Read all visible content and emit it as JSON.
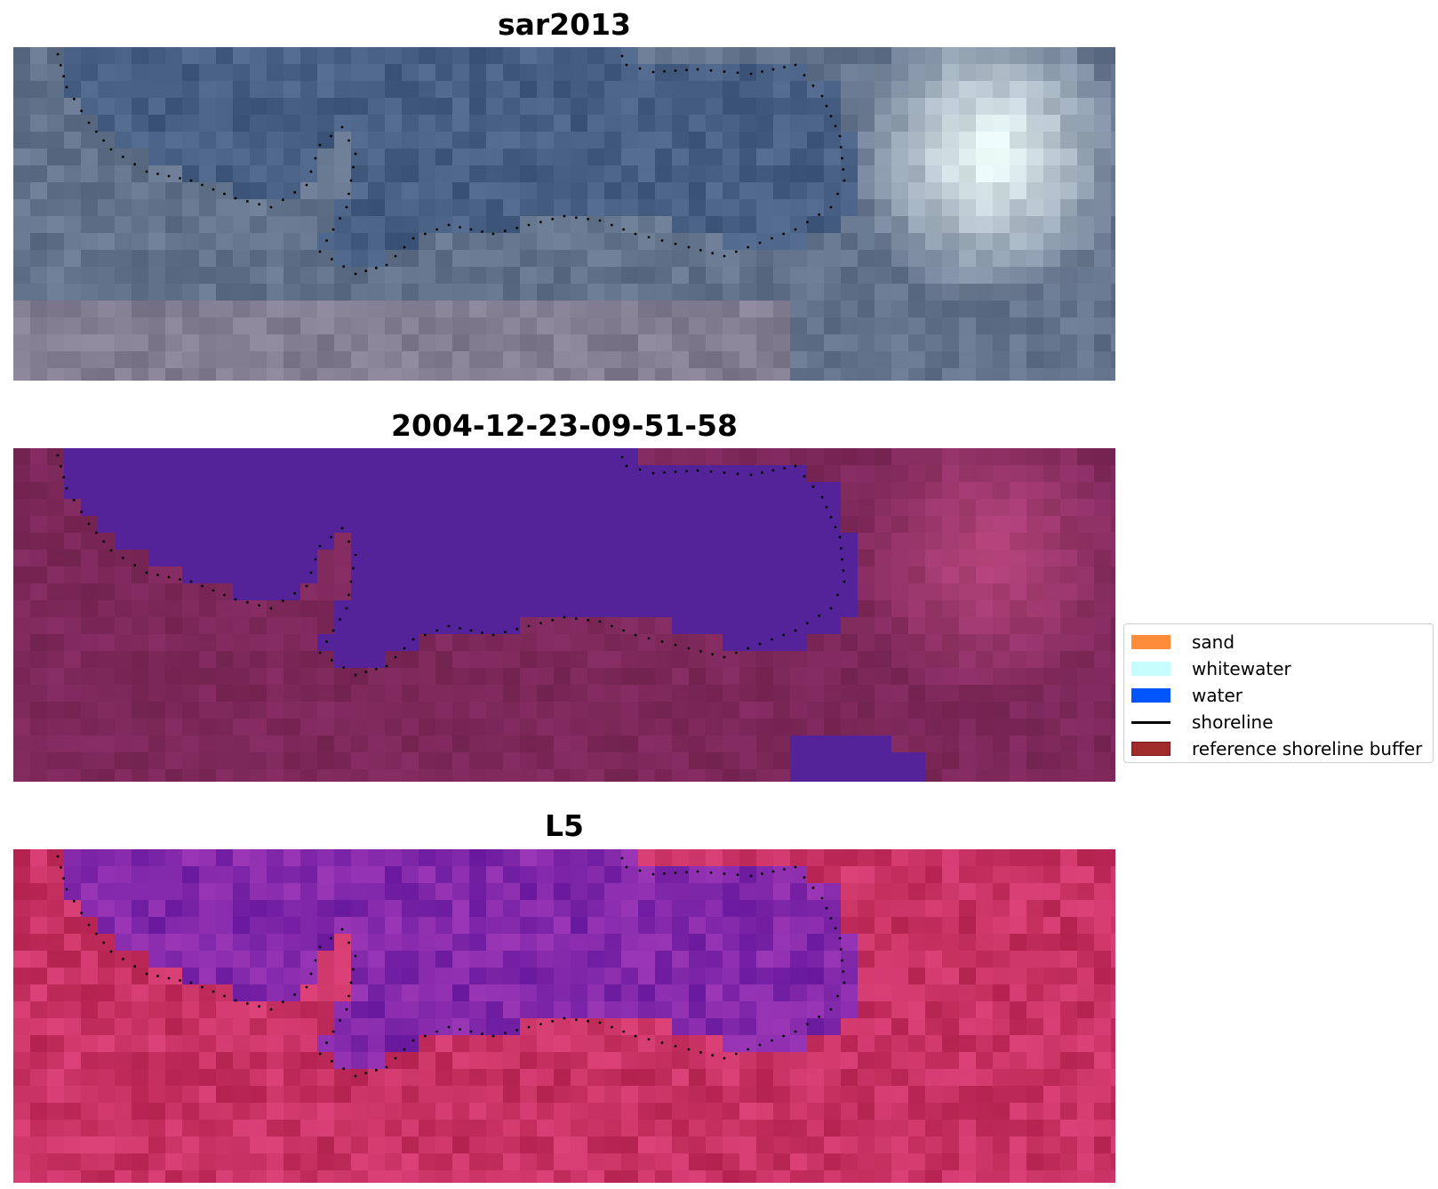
{
  "panels": [
    {
      "title": "sar2013",
      "colormap": "rgb"
    },
    {
      "title": "2004-12-23-09-51-58",
      "colormap": "classified"
    },
    {
      "title": "L5",
      "colormap": "index"
    }
  ],
  "legend": {
    "items": [
      {
        "label": "sand",
        "kind": "patch",
        "color": "#ff8c3a",
        "edge": "#ff8c3a"
      },
      {
        "label": "whitewater",
        "kind": "patch",
        "color": "#c8fdfd",
        "edge": "#c8fdfd"
      },
      {
        "label": "water",
        "kind": "patch",
        "color": "#0055ff",
        "edge": "#0055ff"
      },
      {
        "label": "shoreline",
        "kind": "line",
        "color": "#000000"
      },
      {
        "label": "reference shoreline buffer",
        "kind": "patch",
        "color": "#a12b2b",
        "edge": "#7a1a1a"
      }
    ]
  },
  "colors": {
    "water_class": "#542399",
    "land_class": "#8a2e65",
    "shoreline_dots": "#000000"
  }
}
